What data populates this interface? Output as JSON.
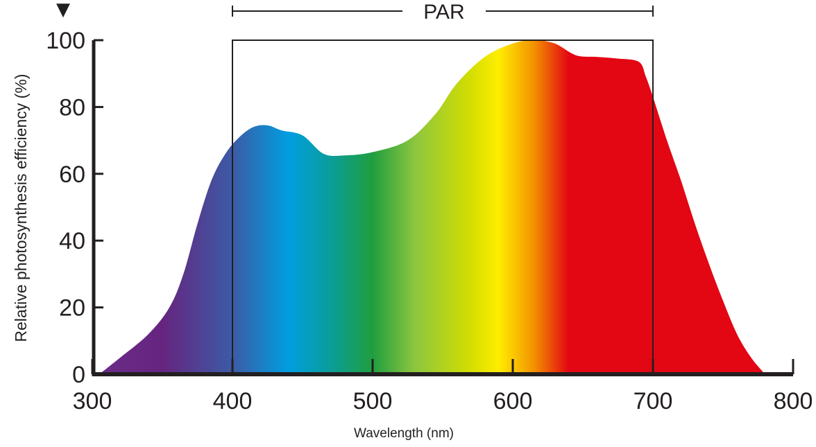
{
  "chart_data": {
    "type": "area",
    "title": "",
    "xlabel": "Wavelength (nm)",
    "ylabel": "Relative photosynthesis efficiency (%)",
    "xlim": [
      300,
      800
    ],
    "ylim": [
      0,
      100
    ],
    "x_ticks": [
      "300",
      "400",
      "500",
      "600",
      "700",
      "800"
    ],
    "y_ticks": [
      "0",
      "20",
      "40",
      "60",
      "80",
      "100"
    ],
    "grid": false,
    "legend": "none",
    "marker_glyph": "▼",
    "par_band": {
      "label": "PAR",
      "range": [
        400,
        700
      ]
    },
    "series": [
      {
        "points": [
          [
            305,
            0
          ],
          [
            320,
            5
          ],
          [
            340,
            12
          ],
          [
            355,
            20
          ],
          [
            365,
            30
          ],
          [
            375,
            45
          ],
          [
            385,
            58
          ],
          [
            395,
            66
          ],
          [
            405,
            71
          ],
          [
            415,
            74
          ],
          [
            425,
            74.5
          ],
          [
            435,
            73
          ],
          [
            450,
            71.5
          ],
          [
            465,
            66
          ],
          [
            480,
            65.5
          ],
          [
            500,
            66.5
          ],
          [
            525,
            70
          ],
          [
            545,
            78
          ],
          [
            560,
            87
          ],
          [
            580,
            95
          ],
          [
            600,
            99
          ],
          [
            615,
            100
          ],
          [
            630,
            99
          ],
          [
            645,
            95.5
          ],
          [
            660,
            95
          ],
          [
            675,
            94.5
          ],
          [
            690,
            93.5
          ],
          [
            695,
            89
          ],
          [
            700,
            83
          ],
          [
            710,
            70
          ],
          [
            720,
            58
          ],
          [
            730,
            45
          ],
          [
            740,
            33
          ],
          [
            750,
            22
          ],
          [
            760,
            12
          ],
          [
            770,
            5
          ],
          [
            780,
            0
          ]
        ]
      }
    ],
    "spectrum_colors": [
      {
        "nm": 300,
        "color": "#6b2c8a"
      },
      {
        "nm": 350,
        "color": "#65257f"
      },
      {
        "nm": 400,
        "color": "#3c5ba6"
      },
      {
        "nm": 440,
        "color": "#009ee0"
      },
      {
        "nm": 470,
        "color": "#0a9d9a"
      },
      {
        "nm": 500,
        "color": "#1f9e3e"
      },
      {
        "nm": 530,
        "color": "#8cc63f"
      },
      {
        "nm": 570,
        "color": "#d4de00"
      },
      {
        "nm": 590,
        "color": "#ffed00"
      },
      {
        "nm": 615,
        "color": "#f39200"
      },
      {
        "nm": 640,
        "color": "#e30613"
      },
      {
        "nm": 800,
        "color": "#e30613"
      }
    ],
    "colors": {
      "axis": "#231f20",
      "text": "#231f20"
    }
  }
}
